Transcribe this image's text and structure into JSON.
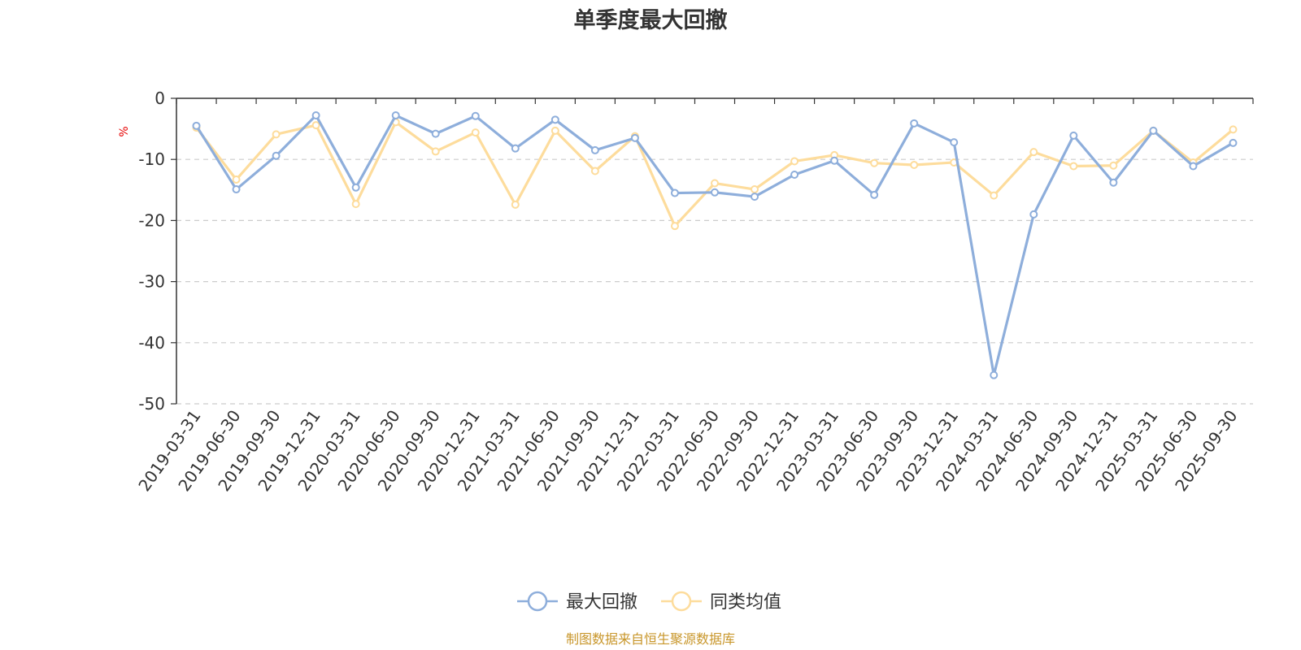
{
  "chart_data": {
    "type": "line",
    "title": "单季度最大回撤",
    "unit_label": "%",
    "ylim": [
      -50,
      0
    ],
    "y_ticks": [
      0,
      -10,
      -20,
      -30,
      -40,
      -50
    ],
    "grid": "horizontal-dashed",
    "legend_placement": "bottom-center",
    "categories": [
      "2019-03-31",
      "2019-06-30",
      "2019-09-30",
      "2019-12-31",
      "2020-03-31",
      "2020-06-30",
      "2020-09-30",
      "2020-12-31",
      "2021-03-31",
      "2021-06-30",
      "2021-09-30",
      "2021-12-31",
      "2022-03-31",
      "2022-06-30",
      "2022-09-30",
      "2022-12-31",
      "2023-03-31",
      "2023-06-30",
      "2023-09-30",
      "2023-12-31",
      "2024-03-31",
      "2024-06-30",
      "2024-09-30",
      "2024-12-31",
      "2025-03-31",
      "2025-06-30",
      "2025-09-30"
    ],
    "series": [
      {
        "name": "最大回撤",
        "color": "#8eaedb",
        "values": [
          -4.5,
          -14.9,
          -9.4,
          -2.8,
          -14.6,
          -2.8,
          -5.8,
          -2.9,
          -8.2,
          -3.5,
          -8.5,
          -6.5,
          -15.5,
          -15.4,
          -16.1,
          -12.5,
          -10.2,
          -15.8,
          -4.1,
          -7.2,
          -45.3,
          -19.0,
          -6.1,
          -13.8,
          -5.3,
          -11.1,
          -7.3
        ]
      },
      {
        "name": "同类均值",
        "color": "#fddc9c",
        "values": [
          -4.8,
          -13.3,
          -5.9,
          -4.4,
          -17.3,
          -3.9,
          -8.7,
          -5.6,
          -17.4,
          -5.3,
          -11.9,
          -6.2,
          -20.9,
          -13.9,
          -14.9,
          -10.3,
          -9.3,
          -10.6,
          -10.9,
          -10.5,
          -15.9,
          -8.8,
          -11.1,
          -11.0,
          -5.3,
          -10.5,
          -5.1
        ]
      }
    ]
  },
  "footer": {
    "source": "制图数据来自恒生聚源数据库"
  }
}
